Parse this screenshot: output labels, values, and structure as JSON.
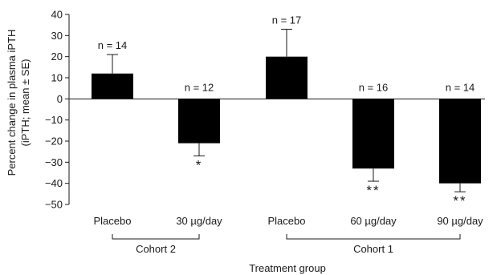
{
  "chart_data": {
    "type": "bar",
    "ylabel_line1": "Percent change in plasma iPTH",
    "ylabel_line2": "(iPTH; mean ± SE)",
    "xlabel": "Treatment group",
    "ylim": [
      -50,
      40
    ],
    "yticks": [
      40,
      30,
      20,
      10,
      0,
      -10,
      -20,
      -30,
      -40,
      -50
    ],
    "colors": {
      "bar": "#000000",
      "axis": "#1a1a1a"
    },
    "categories": [
      "Placebo",
      "30 µg/day",
      "Placebo",
      "60 µg/day",
      "90 µg/day"
    ],
    "values": [
      12,
      -21,
      20,
      -33,
      -40
    ],
    "errors": [
      9,
      6,
      13,
      6,
      4
    ],
    "n_labels": [
      "n = 14",
      "n = 12",
      "n = 17",
      "n = 16",
      "n = 14"
    ],
    "significance": [
      "",
      "*",
      "",
      "**",
      "**"
    ],
    "groups": [
      {
        "label": "Cohort 2",
        "members": [
          0,
          1
        ]
      },
      {
        "label": "Cohort 1",
        "members": [
          2,
          3,
          4
        ]
      }
    ]
  }
}
